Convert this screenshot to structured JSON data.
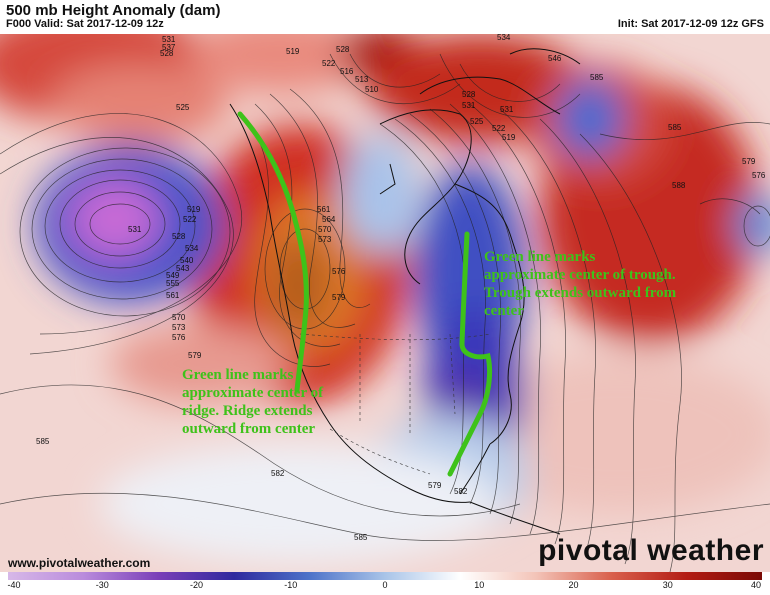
{
  "header": {
    "title": "500 mb Height Anomaly (dam)",
    "valid": "F000 Valid: Sat 2017-12-09 12z",
    "init": "Init: Sat 2017-12-09 12z GFS"
  },
  "footer": {
    "website": "www.pivotalweather.com",
    "brand": "pivotal weather"
  },
  "colorbar": {
    "ticks": [
      "-40",
      "-30",
      "-20",
      "-10",
      "0",
      "10",
      "20",
      "30",
      "40"
    ],
    "colors": [
      "#d7b8e8",
      "#b98bdc",
      "#7a3fb8",
      "#2f2a9e",
      "#4e73c9",
      "#a9c4e8",
      "#ffffff",
      "#f3c4b8",
      "#d9604c",
      "#b31c14",
      "#7a0a05"
    ]
  },
  "map": {
    "contour_labels": [
      {
        "id": "l531a",
        "text": "531"
      },
      {
        "id": "l528a",
        "text": "528"
      },
      {
        "id": "l537a",
        "text": "537"
      },
      {
        "id": "l519a",
        "text": "519"
      },
      {
        "id": "l525a",
        "text": "525"
      },
      {
        "id": "l528b",
        "text": "528"
      },
      {
        "id": "l522a",
        "text": "522"
      },
      {
        "id": "l516a",
        "text": "516"
      },
      {
        "id": "l513a",
        "text": "513"
      },
      {
        "id": "l510a",
        "text": "510"
      },
      {
        "id": "l534a",
        "text": "534"
      },
      {
        "id": "l546a",
        "text": "546"
      },
      {
        "id": "l585a",
        "text": "585"
      },
      {
        "id": "l579a",
        "text": "579"
      },
      {
        "id": "l576a",
        "text": "576"
      },
      {
        "id": "l588a",
        "text": "588"
      },
      {
        "id": "l519b",
        "text": "519"
      },
      {
        "id": "l522b",
        "text": "522"
      },
      {
        "id": "l531b",
        "text": "531"
      },
      {
        "id": "l528c",
        "text": "528"
      },
      {
        "id": "l534b",
        "text": "534"
      },
      {
        "id": "l540a",
        "text": "540"
      },
      {
        "id": "l543a",
        "text": "543"
      },
      {
        "id": "l549a",
        "text": "549"
      },
      {
        "id": "l555a",
        "text": "555"
      },
      {
        "id": "l561a",
        "text": "561"
      },
      {
        "id": "l570a",
        "text": "570"
      },
      {
        "id": "l573a",
        "text": "573"
      },
      {
        "id": "l576b",
        "text": "576"
      },
      {
        "id": "l579b",
        "text": "579"
      },
      {
        "id": "l561b",
        "text": "561"
      },
      {
        "id": "l564a",
        "text": "564"
      },
      {
        "id": "l570b",
        "text": "570"
      },
      {
        "id": "l573b",
        "text": "573"
      },
      {
        "id": "l576c",
        "text": "576"
      },
      {
        "id": "l579c",
        "text": "579"
      },
      {
        "id": "l585b",
        "text": "585"
      },
      {
        "id": "l582a",
        "text": "582"
      },
      {
        "id": "l579d",
        "text": "579"
      },
      {
        "id": "l582b",
        "text": "582"
      },
      {
        "id": "l585c",
        "text": "585"
      },
      {
        "id": "l519c",
        "text": "519"
      },
      {
        "id": "l522c",
        "text": "522"
      },
      {
        "id": "l525b",
        "text": "525"
      },
      {
        "id": "l528d",
        "text": "528"
      },
      {
        "id": "l531c",
        "text": "531"
      },
      {
        "id": "l531d",
        "text": "531"
      },
      {
        "id": "l585d",
        "text": "585"
      }
    ]
  },
  "annotations": {
    "ridge": "Green line marks approximate center of ridge. Ridge extends outward from center",
    "trough": "Green line marks approximate center of trough. Trough extends outward from center"
  }
}
